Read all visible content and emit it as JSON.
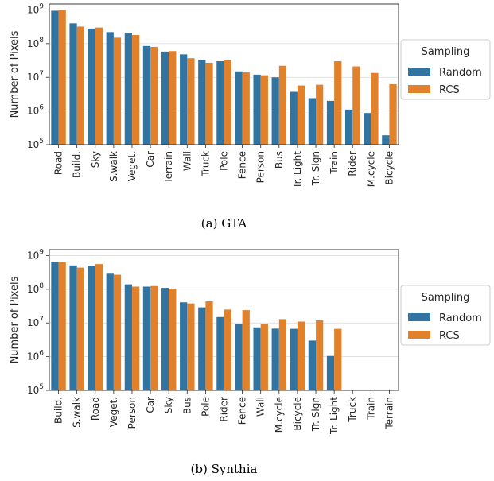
{
  "chart_data": [
    {
      "type": "bar",
      "caption": "(a) GTA",
      "ylabel": "Number of Pixels",
      "yscale": "log",
      "ylim": [
        100000,
        1500000000
      ],
      "y_ticks": [
        {
          "value": 100000,
          "base": "10",
          "exp": "5"
        },
        {
          "value": 1000000,
          "base": "10",
          "exp": "6"
        },
        {
          "value": 10000000,
          "base": "10",
          "exp": "7"
        },
        {
          "value": 100000000,
          "base": "10",
          "exp": "8"
        },
        {
          "value": 1000000000,
          "base": "10",
          "exp": "9"
        }
      ],
      "grid": "horizontal",
      "legend": {
        "title": "Sampling",
        "placement": "right"
      },
      "categories": [
        "Road",
        "Build.",
        "Sky",
        "S.walk",
        "Veget.",
        "Car",
        "Terrain",
        "Wall",
        "Truck",
        "Pole",
        "Fence",
        "Person",
        "Bus",
        "Tr. Light",
        "Tr. Sign",
        "Train",
        "Rider",
        "M.cycle",
        "Bicycle"
      ],
      "series": [
        {
          "name": "Random",
          "color": "#3274a1",
          "values": [
            950000000,
            400000000,
            280000000,
            220000000,
            210000000,
            85000000,
            58000000,
            48000000,
            33000000,
            30000000,
            15000000,
            12000000,
            10000000,
            3700000,
            2400000,
            2000000,
            1100000,
            870000,
            190000
          ]
        },
        {
          "name": "RCS",
          "color": "#e1812c",
          "values": [
            1000000000,
            320000000,
            300000000,
            150000000,
            180000000,
            80000000,
            60000000,
            37000000,
            27000000,
            33000000,
            14000000,
            11500000,
            22000000,
            5700000,
            6000000,
            30000000,
            21000000,
            13500000,
            6200000
          ]
        }
      ]
    },
    {
      "type": "bar",
      "caption": "(b) Synthia",
      "ylabel": "Number of Pixels",
      "yscale": "log",
      "ylim": [
        100000,
        1500000000
      ],
      "y_ticks": [
        {
          "value": 100000,
          "base": "10",
          "exp": "5"
        },
        {
          "value": 1000000,
          "base": "10",
          "exp": "6"
        },
        {
          "value": 10000000,
          "base": "10",
          "exp": "7"
        },
        {
          "value": 100000000,
          "base": "10",
          "exp": "8"
        },
        {
          "value": 1000000000,
          "base": "10",
          "exp": "9"
        }
      ],
      "grid": "horizontal",
      "legend": {
        "title": "Sampling",
        "placement": "right"
      },
      "categories": [
        "Build.",
        "S.walk",
        "Road",
        "Veget.",
        "Person",
        "Car",
        "Sky",
        "Bus",
        "Pole",
        "Rider",
        "Fence",
        "Wall",
        "M.cycle",
        "Bicycle",
        "Tr. Sign",
        "Tr. Light",
        "Truck",
        "Train",
        "Terrain"
      ],
      "series": [
        {
          "name": "Random",
          "color": "#3274a1",
          "values": [
            640000000,
            510000000,
            500000000,
            290000000,
            140000000,
            120000000,
            110000000,
            41000000,
            29000000,
            15000000,
            9200000,
            7400000,
            6800000,
            6700000,
            3000000,
            1050000,
            0,
            0,
            0
          ]
        },
        {
          "name": "RCS",
          "color": "#e1812c",
          "values": [
            630000000,
            440000000,
            560000000,
            270000000,
            120000000,
            125000000,
            105000000,
            38000000,
            44000000,
            25000000,
            24000000,
            9400000,
            13000000,
            11000000,
            12000000,
            6700000,
            0,
            0,
            0
          ]
        }
      ]
    }
  ]
}
